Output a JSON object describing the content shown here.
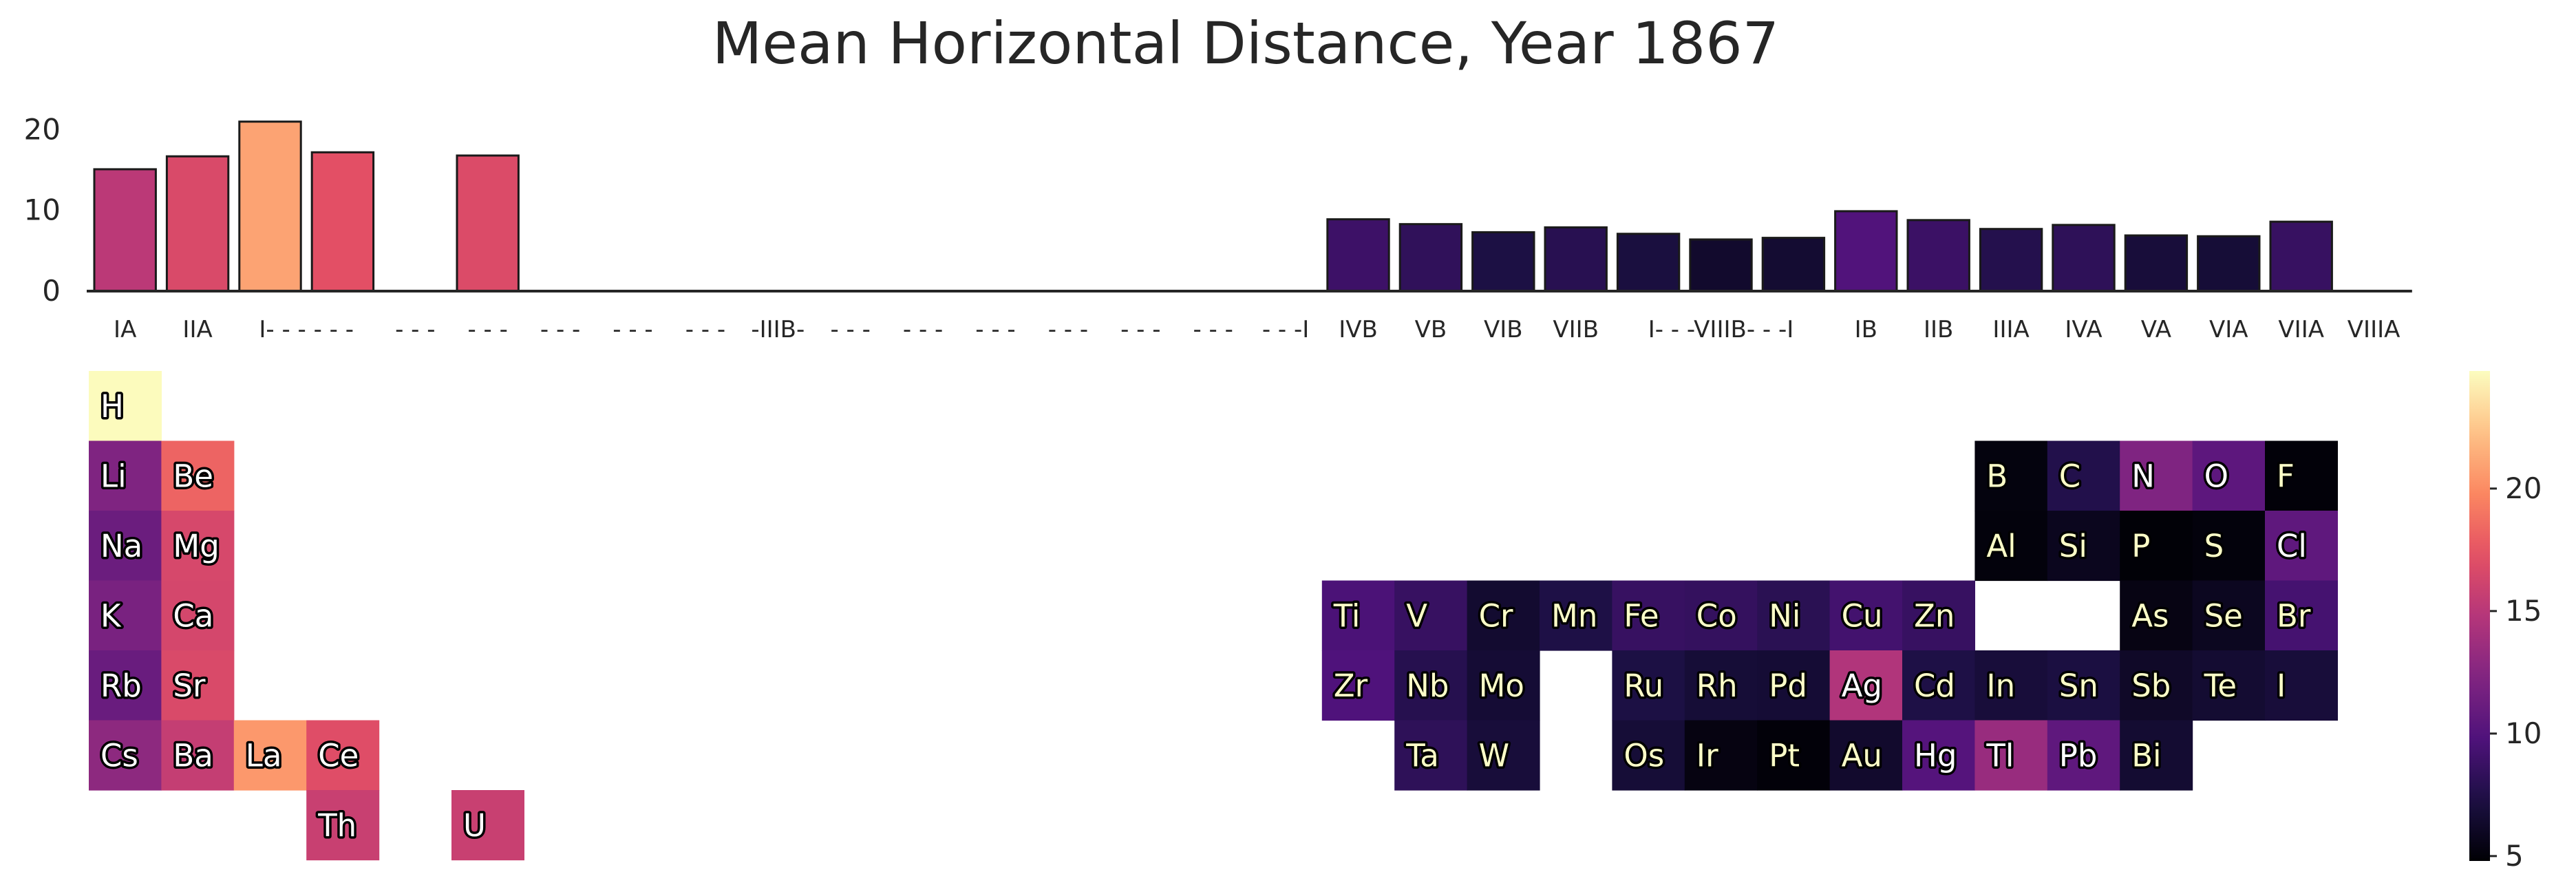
{
  "chart_data": {
    "type": "heatmap",
    "title": "Mean Horizontal Distance, Year 1867",
    "bar": {
      "type": "bar",
      "categories": [
        "IA",
        "IIA",
        "I- - - - - -",
        "- - -",
        "- - -",
        "- - -",
        "- - -",
        "- - -",
        "-IIIB-",
        "- - -",
        "- - -",
        "- - -",
        "- - -",
        "- - -",
        "- - -",
        "- - -I",
        "IVB",
        "VB",
        "VIB",
        "VIIB",
        "I- - -VIIIB- - -I",
        "IB",
        "IIB",
        "IIIA",
        "IVA",
        "VA",
        "VIA",
        "VIIA",
        "VIIIA"
      ],
      "columns": [
        1,
        2,
        3,
        4,
        5,
        6,
        7,
        8,
        9,
        10,
        11,
        12,
        13,
        14,
        15,
        16,
        17,
        18,
        19,
        20,
        21,
        22,
        23,
        24,
        25,
        26,
        27,
        28,
        29,
        30,
        31,
        32
      ],
      "tick_labels": [
        {
          "col": 1,
          "text": "IA"
        },
        {
          "col": 2,
          "text": "IIA"
        },
        {
          "col": 3.5,
          "text": "I- - - - - -"
        },
        {
          "col": 5,
          "text": "- - -"
        },
        {
          "col": 6,
          "text": "- - -"
        },
        {
          "col": 7,
          "text": "- - -"
        },
        {
          "col": 8,
          "text": "- - -"
        },
        {
          "col": 9,
          "text": "- - -"
        },
        {
          "col": 10,
          "text": "-IIIB-"
        },
        {
          "col": 11,
          "text": "- - -"
        },
        {
          "col": 12,
          "text": "- - -"
        },
        {
          "col": 13,
          "text": "- - -"
        },
        {
          "col": 14,
          "text": "- - -"
        },
        {
          "col": 15,
          "text": "- - -"
        },
        {
          "col": 16,
          "text": "- - -"
        },
        {
          "col": 17,
          "text": "- - -I"
        },
        {
          "col": 18,
          "text": "IVB"
        },
        {
          "col": 19,
          "text": "VB"
        },
        {
          "col": 20,
          "text": "VIB"
        },
        {
          "col": 21,
          "text": "VIIB"
        },
        {
          "col": 23,
          "text": "I- - -VIIIB- - -I"
        },
        {
          "col": 25,
          "text": "IB"
        },
        {
          "col": 26,
          "text": "IIB"
        },
        {
          "col": 27,
          "text": "IIIA"
        },
        {
          "col": 28,
          "text": "IVA"
        },
        {
          "col": 29,
          "text": "VA"
        },
        {
          "col": 30,
          "text": "VIA"
        },
        {
          "col": 31,
          "text": "VIIA"
        },
        {
          "col": 32,
          "text": "VIIIA"
        }
      ],
      "values": [
        {
          "col": 1,
          "value": 15.1
        },
        {
          "col": 2,
          "value": 16.7
        },
        {
          "col": 3,
          "value": 21.0
        },
        {
          "col": 4,
          "value": 17.2
        },
        {
          "col": 6,
          "value": 16.8
        },
        {
          "col": 18,
          "value": 8.9
        },
        {
          "col": 19,
          "value": 8.3
        },
        {
          "col": 20,
          "value": 7.3
        },
        {
          "col": 21,
          "value": 7.9
        },
        {
          "col": 22,
          "value": 7.1
        },
        {
          "col": 23,
          "value": 6.4
        },
        {
          "col": 24,
          "value": 6.6
        },
        {
          "col": 25,
          "value": 9.9
        },
        {
          "col": 26,
          "value": 8.8
        },
        {
          "col": 27,
          "value": 7.7
        },
        {
          "col": 28,
          "value": 8.2
        },
        {
          "col": 29,
          "value": 6.9
        },
        {
          "col": 30,
          "value": 6.8
        },
        {
          "col": 31,
          "value": 8.6
        }
      ],
      "ylim": [
        0,
        22
      ],
      "yticks": [
        0,
        10,
        20
      ]
    },
    "table": {
      "elements": [
        {
          "symbol": "H",
          "row": 1,
          "col": 1,
          "value": 24.7
        },
        {
          "symbol": "Li",
          "row": 2,
          "col": 1,
          "value": 12.2
        },
        {
          "symbol": "Be",
          "row": 2,
          "col": 2,
          "value": 18.2
        },
        {
          "symbol": "B",
          "row": 2,
          "col": 27,
          "value": 5.2
        },
        {
          "symbol": "C",
          "row": 2,
          "col": 28,
          "value": 7.6
        },
        {
          "symbol": "N",
          "row": 2,
          "col": 29,
          "value": 12.2
        },
        {
          "symbol": "O",
          "row": 2,
          "col": 30,
          "value": 10.5
        },
        {
          "symbol": "F",
          "row": 2,
          "col": 31,
          "value": 5.0
        },
        {
          "symbol": "Na",
          "row": 3,
          "col": 1,
          "value": 11.2
        },
        {
          "symbol": "Mg",
          "row": 3,
          "col": 2,
          "value": 16.5
        },
        {
          "symbol": "Al",
          "row": 3,
          "col": 27,
          "value": 5.1
        },
        {
          "symbol": "Si",
          "row": 3,
          "col": 28,
          "value": 5.8
        },
        {
          "symbol": "P",
          "row": 3,
          "col": 29,
          "value": 4.9
        },
        {
          "symbol": "S",
          "row": 3,
          "col": 30,
          "value": 5.1
        },
        {
          "symbol": "Cl",
          "row": 3,
          "col": 31,
          "value": 10.6
        },
        {
          "symbol": "K",
          "row": 4,
          "col": 1,
          "value": 11.9
        },
        {
          "symbol": "Ca",
          "row": 4,
          "col": 2,
          "value": 16.4
        },
        {
          "symbol": "Ti",
          "row": 4,
          "col": 18,
          "value": 9.6
        },
        {
          "symbol": "V",
          "row": 4,
          "col": 19,
          "value": 8.6
        },
        {
          "symbol": "Cr",
          "row": 4,
          "col": 20,
          "value": 6.5
        },
        {
          "symbol": "Mn",
          "row": 4,
          "col": 21,
          "value": 7.4
        },
        {
          "symbol": "Fe",
          "row": 4,
          "col": 22,
          "value": 8.6
        },
        {
          "symbol": "Co",
          "row": 4,
          "col": 23,
          "value": 8.5
        },
        {
          "symbol": "Ni",
          "row": 4,
          "col": 24,
          "value": 8.0
        },
        {
          "symbol": "Cu",
          "row": 4,
          "col": 25,
          "value": 9.2
        },
        {
          "symbol": "Zn",
          "row": 4,
          "col": 26,
          "value": 8.6
        },
        {
          "symbol": "As",
          "row": 4,
          "col": 29,
          "value": 5.4
        },
        {
          "symbol": "Se",
          "row": 4,
          "col": 30,
          "value": 5.9
        },
        {
          "symbol": "Br",
          "row": 4,
          "col": 31,
          "value": 9.3
        },
        {
          "symbol": "Rb",
          "row": 5,
          "col": 1,
          "value": 11.1
        },
        {
          "symbol": "Sr",
          "row": 5,
          "col": 2,
          "value": 16.7
        },
        {
          "symbol": "Zr",
          "row": 5,
          "col": 18,
          "value": 9.8
        },
        {
          "symbol": "Nb",
          "row": 5,
          "col": 19,
          "value": 7.8
        },
        {
          "symbol": "Mo",
          "row": 5,
          "col": 20,
          "value": 6.7
        },
        {
          "symbol": "Ru",
          "row": 5,
          "col": 22,
          "value": 7.3
        },
        {
          "symbol": "Rh",
          "row": 5,
          "col": 23,
          "value": 6.8
        },
        {
          "symbol": "Pd",
          "row": 5,
          "col": 24,
          "value": 6.7
        },
        {
          "symbol": "Ag",
          "row": 5,
          "col": 25,
          "value": 14.6
        },
        {
          "symbol": "Cd",
          "row": 5,
          "col": 26,
          "value": 7.4
        },
        {
          "symbol": "In",
          "row": 5,
          "col": 27,
          "value": 6.9
        },
        {
          "symbol": "Sn",
          "row": 5,
          "col": 28,
          "value": 7.2
        },
        {
          "symbol": "Sb",
          "row": 5,
          "col": 29,
          "value": 6.2
        },
        {
          "symbol": "Te",
          "row": 5,
          "col": 30,
          "value": 6.6
        },
        {
          "symbol": "I",
          "row": 5,
          "col": 31,
          "value": 6.9
        },
        {
          "symbol": "Cs",
          "row": 6,
          "col": 1,
          "value": 12.9
        },
        {
          "symbol": "Ba",
          "row": 6,
          "col": 2,
          "value": 15.6
        },
        {
          "symbol": "La",
          "row": 6,
          "col": 3,
          "value": 20.5
        },
        {
          "symbol": "Ce",
          "row": 6,
          "col": 4,
          "value": 17.0
        },
        {
          "symbol": "Ta",
          "row": 6,
          "col": 19,
          "value": 8.2
        },
        {
          "symbol": "W",
          "row": 6,
          "col": 20,
          "value": 6.9
        },
        {
          "symbol": "Os",
          "row": 6,
          "col": 22,
          "value": 6.8
        },
        {
          "symbol": "Ir",
          "row": 6,
          "col": 23,
          "value": 5.3
        },
        {
          "symbol": "Pt",
          "row": 6,
          "col": 24,
          "value": 5.0
        },
        {
          "symbol": "Au",
          "row": 6,
          "col": 25,
          "value": 6.4
        },
        {
          "symbol": "Hg",
          "row": 6,
          "col": 26,
          "value": 10.1
        },
        {
          "symbol": "Tl",
          "row": 6,
          "col": 27,
          "value": 13.4
        },
        {
          "symbol": "Pb",
          "row": 6,
          "col": 28,
          "value": 10.6
        },
        {
          "symbol": "Bi",
          "row": 6,
          "col": 29,
          "value": 6.6
        },
        {
          "symbol": "Th",
          "row": 7,
          "col": 4,
          "value": 15.8
        },
        {
          "symbol": "U",
          "row": 7,
          "col": 6,
          "value": 15.8
        }
      ]
    },
    "colorbar": {
      "colormap": "magma",
      "range": [
        4.8,
        24.8
      ],
      "ticks": [
        5,
        10,
        15,
        20
      ]
    },
    "grid": false
  }
}
